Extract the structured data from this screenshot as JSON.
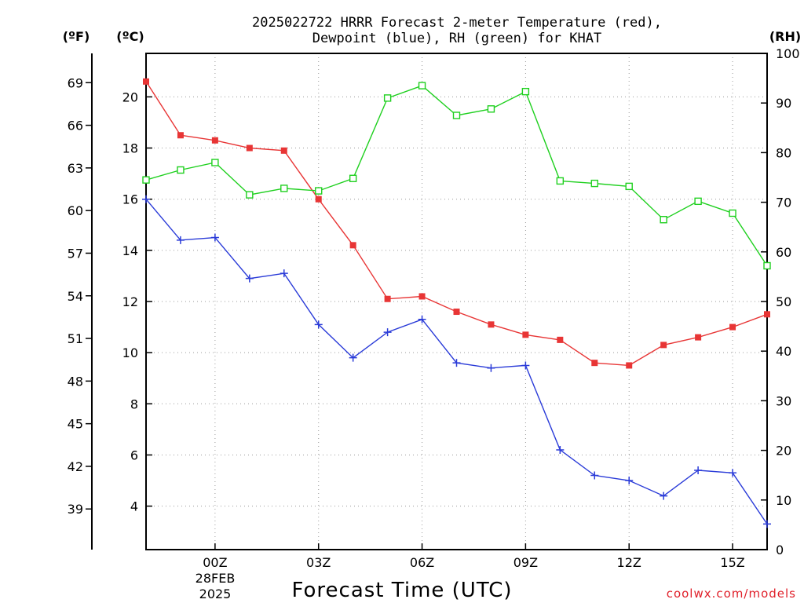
{
  "chart_data": {
    "type": "line",
    "title_line1": "2025022722 HRRR Forecast 2-meter Temperature (red),",
    "title_line2": "Dewpoint (blue), RH (green) for KHAT",
    "xlabel": "Forecast Time (UTC)",
    "credit": "coolwx.com/models",
    "left_unit_f": "(ºF)",
    "left_unit_c": "(ºC)",
    "right_unit": "(RH)",
    "x_ticks": [
      {
        "hour": 2,
        "label": "00Z"
      },
      {
        "hour": 5,
        "label": "03Z"
      },
      {
        "hour": 8,
        "label": "06Z"
      },
      {
        "hour": 11,
        "label": "09Z"
      },
      {
        "hour": 14,
        "label": "12Z"
      },
      {
        "hour": 17,
        "label": "15Z"
      }
    ],
    "date_label_line1": "28FEB",
    "date_label_line2": "2025",
    "x_range_hours": [
      0,
      18
    ],
    "celsius_axis": {
      "range": [
        2.3,
        21.7
      ],
      "ticks": [
        "4",
        "6",
        "8",
        "10",
        "12",
        "14",
        "16",
        "18",
        "20"
      ]
    },
    "fahrenheit_axis": {
      "ticks": [
        "39",
        "42",
        "45",
        "48",
        "51",
        "54",
        "57",
        "60",
        "63",
        "66",
        "69"
      ]
    },
    "rh_axis": {
      "range": [
        0,
        100
      ],
      "ticks": [
        "0",
        "10",
        "20",
        "30",
        "40",
        "50",
        "60",
        "70",
        "80",
        "90",
        "100"
      ]
    },
    "series": [
      {
        "name": "Temperature",
        "unit": "C",
        "color": "#e83535",
        "marker": "filled-square",
        "values": [
          20.6,
          18.5,
          18.3,
          18.0,
          17.9,
          16.0,
          14.2,
          12.1,
          12.2,
          11.6,
          11.1,
          10.7,
          10.5,
          9.6,
          9.5,
          10.3,
          10.6,
          11.0,
          11.5
        ]
      },
      {
        "name": "Dewpoint",
        "unit": "C",
        "color": "#2a3bd8",
        "marker": "plus",
        "values": [
          16.0,
          14.4,
          14.5,
          12.9,
          13.1,
          11.1,
          9.8,
          10.8,
          11.3,
          9.6,
          9.4,
          9.5,
          6.2,
          5.2,
          5.0,
          4.4,
          5.4,
          5.3,
          3.3
        ]
      },
      {
        "name": "RH",
        "unit": "%",
        "color": "#1fd01f",
        "marker": "open-square",
        "values": [
          74.5,
          76.5,
          78.0,
          71.5,
          72.8,
          72.3,
          74.8,
          91.0,
          93.5,
          87.5,
          88.8,
          92.3,
          74.3,
          73.8,
          73.2,
          66.5,
          70.2,
          67.8,
          57.2
        ]
      }
    ]
  }
}
